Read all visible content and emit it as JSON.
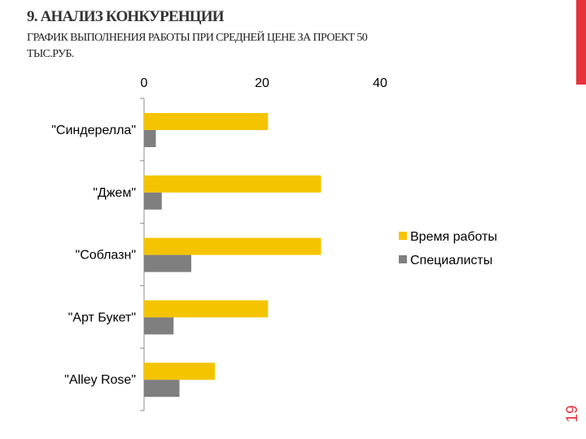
{
  "slide": {
    "heading": "9. АНАЛИЗ КОНКУРЕНЦИИ",
    "subtitle": "ГРАФИК ВЫПОЛНЕНИЯ РАБОТЫ ПРИ СРЕДНЕЙ ЦЕНЕ ЗА ПРОЕКТ 50 ТЫС.РУБ.",
    "page_number": "19",
    "accent_color": "#e7333a"
  },
  "chart_data": {
    "type": "bar",
    "orientation": "horizontal",
    "categories": [
      "\"Синдерелла\"",
      "\"Джем\"",
      "\"Соблазн\"",
      "\"Арт Букет\"",
      "\"Alley Rose\""
    ],
    "series": [
      {
        "name": "Время работы",
        "values": [
          21,
          30,
          30,
          21,
          12
        ],
        "color": "#f5c400"
      },
      {
        "name": "Специалисты",
        "values": [
          2,
          3,
          8,
          5,
          6
        ],
        "color": "#7f7f7f"
      }
    ],
    "x_ticks": [
      0,
      20,
      40
    ],
    "xlim": [
      0,
      40
    ],
    "x_axis_position": "top",
    "grid": false,
    "legend_position": "right"
  }
}
